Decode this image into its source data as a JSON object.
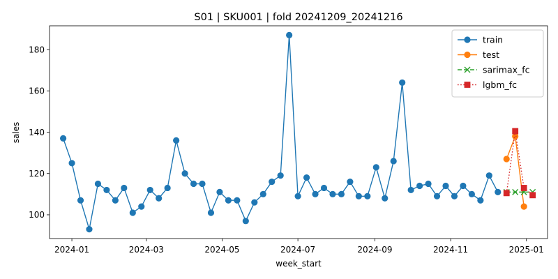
{
  "chart_data": {
    "type": "line",
    "title": "S01 | SKU001 | fold 20241209_20241216",
    "xlabel": "week_start",
    "ylabel": "sales",
    "x_range": [
      "2023-12-14",
      "2025-01-18"
    ],
    "ylim": [
      88.5,
      191.5
    ],
    "y_ticks": [
      100,
      120,
      140,
      160,
      180
    ],
    "y_tick_labels": [
      "100",
      "120",
      "140",
      "160",
      "180"
    ],
    "x_ticks": [
      "2024-01-01",
      "2024-03-01",
      "2024-05-01",
      "2024-07-01",
      "2024-09-01",
      "2024-11-01",
      "2025-01-01"
    ],
    "x_tick_labels": [
      "2024-01",
      "2024-03",
      "2024-05",
      "2024-07",
      "2024-09",
      "2024-11",
      "2025-01"
    ],
    "grid": false,
    "legend_position": "top-right",
    "series": [
      {
        "name": "train",
        "color": "#1f77b4",
        "line_style": "solid",
        "marker": "circle",
        "start_date": "2023-12-25",
        "interval_days": 7,
        "values": [
          137,
          125,
          107,
          93,
          115,
          112,
          107,
          113,
          101,
          104,
          112,
          108,
          113,
          136,
          120,
          115,
          115,
          101,
          111,
          107,
          107,
          97,
          106,
          110,
          116,
          119,
          187,
          109,
          118,
          110,
          113,
          110,
          110,
          116,
          109,
          109,
          123,
          108,
          126,
          164,
          112,
          114,
          115,
          109,
          114,
          109,
          114,
          110,
          107,
          119,
          111
        ]
      },
      {
        "name": "test",
        "color": "#ff7f0e",
        "line_style": "solid",
        "marker": "circle",
        "start_date": "2024-12-16",
        "interval_days": 7,
        "values": [
          127,
          138,
          104
        ]
      },
      {
        "name": "sarimax_fc",
        "color": "#2ca02c",
        "line_style": "dashed",
        "marker": "x",
        "start_date": "2024-12-16",
        "interval_days": 7,
        "values": [
          111,
          111,
          111,
          111
        ]
      },
      {
        "name": "lgbm_fc",
        "color": "#d62728",
        "line_style": "dotted",
        "marker": "square",
        "start_date": "2024-12-16",
        "interval_days": 7,
        "values": [
          110.5,
          140.5,
          113,
          109.5
        ]
      }
    ]
  }
}
